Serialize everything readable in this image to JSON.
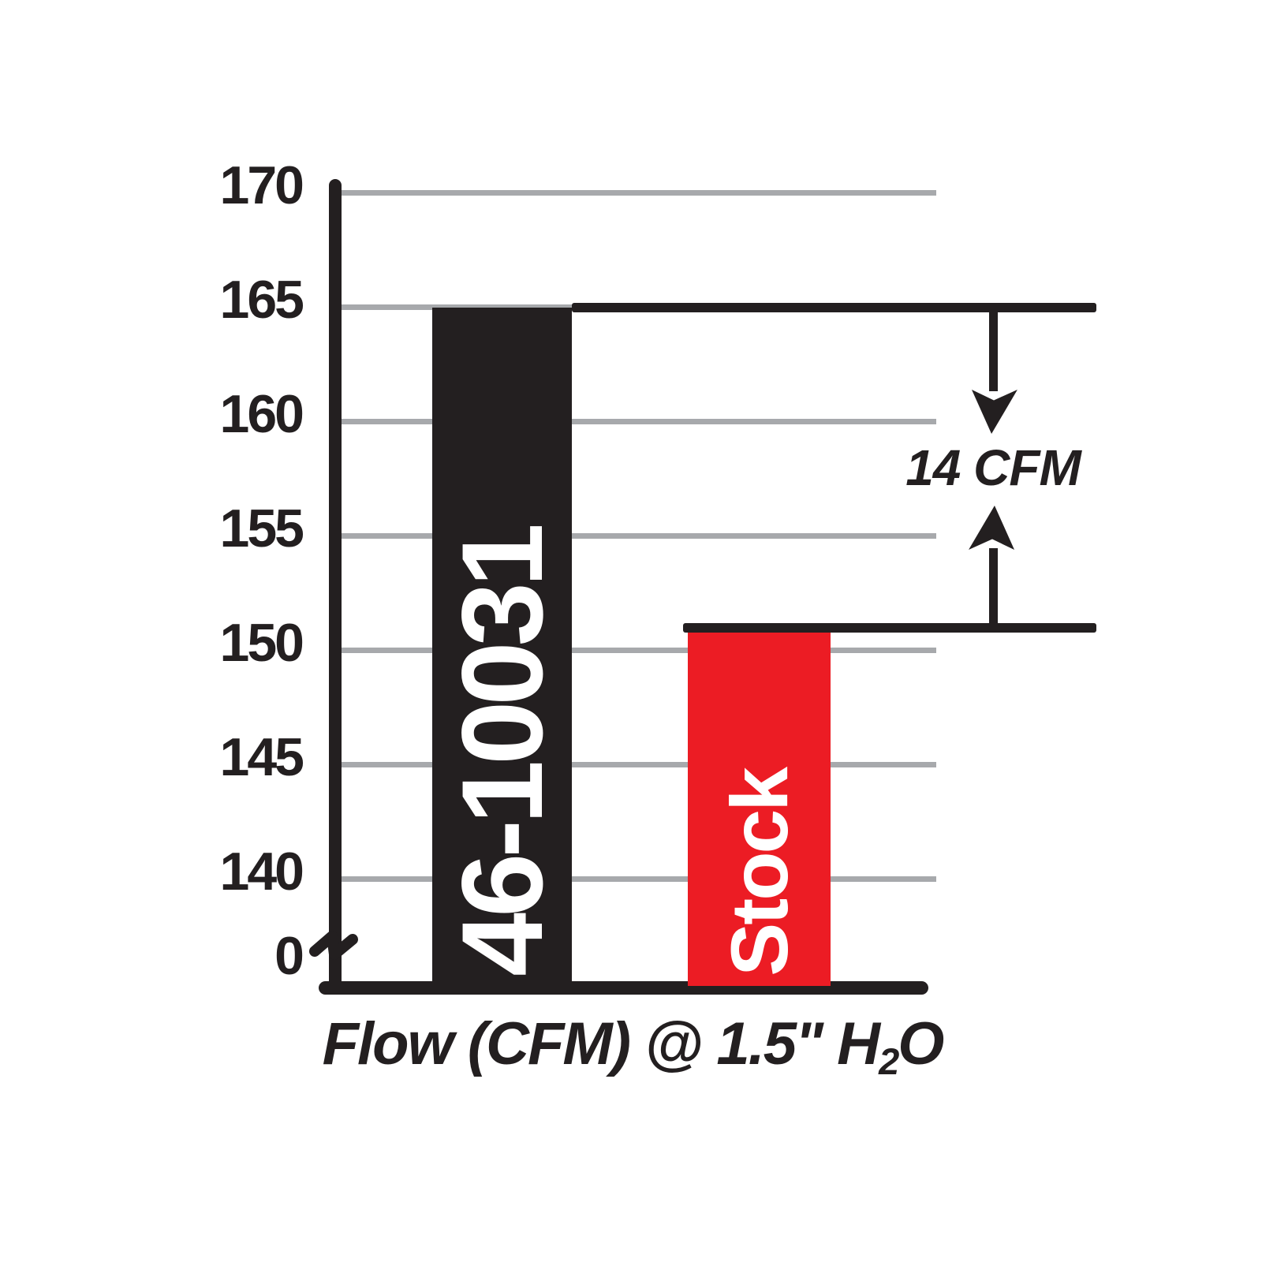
{
  "chart": {
    "y_axis": {
      "tick_labels": [
        "170",
        "165",
        "160",
        "155",
        "150",
        "145",
        "140"
      ],
      "tick_values": [
        170,
        165,
        160,
        155,
        150,
        145,
        140
      ],
      "zero_label": "0"
    },
    "bars": [
      {
        "label": "46-10031",
        "value": 165,
        "color": "#231f20",
        "text_color": "#ffffff"
      },
      {
        "label": "Stock",
        "value": 151,
        "color": "#ec1c24",
        "text_color": "#ffffff"
      }
    ],
    "annotation": {
      "label": "14 CFM"
    },
    "x_label": {
      "prefix": "Flow (CFM) @ 1.5\" H",
      "sub": "2",
      "suffix": "O"
    },
    "colors": {
      "bar_black": "#231f20",
      "bar_red": "#ec1c24",
      "grid_gray": "#a7a9ac",
      "background": "#ffffff",
      "label_white": "#ffffff"
    }
  },
  "chart_data": {
    "type": "bar",
    "categories": [
      "46-10031",
      "Stock"
    ],
    "values": [
      165,
      151
    ],
    "title": "",
    "xlabel": "Flow (CFM) @ 1.5\" H2O",
    "ylabel": "",
    "yticks": [
      170,
      165,
      160,
      155,
      150,
      145,
      140,
      0
    ],
    "ylim_display": [
      140,
      170
    ],
    "axis_break_near_zero": true,
    "annotation": "14 CFM",
    "annotation_meaning": "difference between 46-10031 bar (165 CFM) and Stock bar (151 CFM)",
    "grid": "horizontal",
    "legend": "none",
    "series_colors": [
      "#231f20",
      "#ec1c24"
    ]
  }
}
